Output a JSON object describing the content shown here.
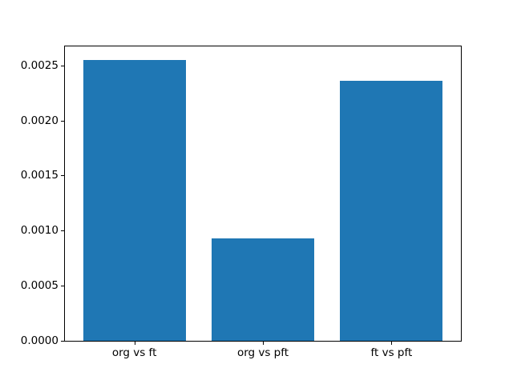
{
  "chart_data": {
    "type": "bar",
    "title": "",
    "categories": [
      "org vs ft",
      "org vs pft",
      "ft vs pft"
    ],
    "values": [
      0.002545,
      0.000928,
      0.002362
    ],
    "xlabel": "",
    "ylabel": "",
    "ylim": [
      0,
      0.002672
    ],
    "xlim": [
      -0.54,
      2.54
    ],
    "bar_width": 0.8,
    "yticks": {
      "values": [
        0.0,
        0.0005,
        0.001,
        0.0015,
        0.002,
        0.0025
      ],
      "labels": [
        "0.0000",
        "0.0005",
        "0.0010",
        "0.0015",
        "0.0020",
        "0.0025"
      ]
    },
    "grid": false,
    "legend": null,
    "colors": {
      "bar": "#1f77b4",
      "spine": "#000000",
      "text": "#000000",
      "background": "#ffffff"
    }
  }
}
